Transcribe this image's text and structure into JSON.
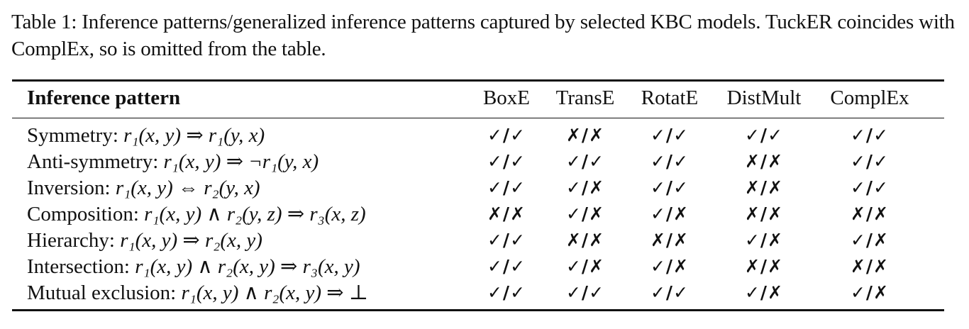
{
  "caption": "Table 1: Inference patterns/generalized inference patterns captured by selected KBC models. TuckER coincides with ComplEx, so is omitted from the table.",
  "table": {
    "header": {
      "pattern": "Inference pattern",
      "models": [
        "BoxE",
        "TransE",
        "RotatE",
        "DistMult",
        "ComplEx"
      ]
    },
    "rows": [
      {
        "name": "Symmetry:",
        "formula": "r₁(x, y) ⇒ r₁(y, x)",
        "values": [
          "✓/✓",
          "✗/✗",
          "✓/✓",
          "✓/✓",
          "✓/✓"
        ]
      },
      {
        "name": "Anti-symmetry:",
        "formula": "r₁(x, y) ⇒ ¬r₁(y, x)",
        "values": [
          "✓/✓",
          "✓/✓",
          "✓/✓",
          "✗/✗",
          "✓/✓"
        ]
      },
      {
        "name": "Inversion:",
        "formula": "r₁(x, y) ⇔ r₂(y, x)",
        "values": [
          "✓/✓",
          "✓/✗",
          "✓/✓",
          "✗/✗",
          "✓/✓"
        ]
      },
      {
        "name": "Composition:",
        "formula": "r₁(x, y) ∧ r₂(y, z) ⇒ r₃(x, z)",
        "values": [
          "✗/✗",
          "✓/✗",
          "✓/✗",
          "✗/✗",
          "✗/✗"
        ]
      },
      {
        "name": "Hierarchy:",
        "formula": "r₁(x, y) ⇒ r₂(x, y)",
        "values": [
          "✓/✓",
          "✗/✗",
          "✗/✗",
          "✓/✗",
          "✓/✗"
        ]
      },
      {
        "name": "Intersection:",
        "formula": "r₁(x, y) ∧ r₂(x, y) ⇒ r₃(x, y)",
        "values": [
          "✓/✓",
          "✓/✗",
          "✓/✗",
          "✗/✗",
          "✗/✗"
        ]
      },
      {
        "name": "Mutual exclusion:",
        "formula": "r₁(x, y) ∧ r₂(x, y) ⇒ ⊥",
        "values": [
          "✓/✓",
          "✓/✓",
          "✓/✓",
          "✓/✗",
          "✓/✗"
        ]
      }
    ]
  }
}
